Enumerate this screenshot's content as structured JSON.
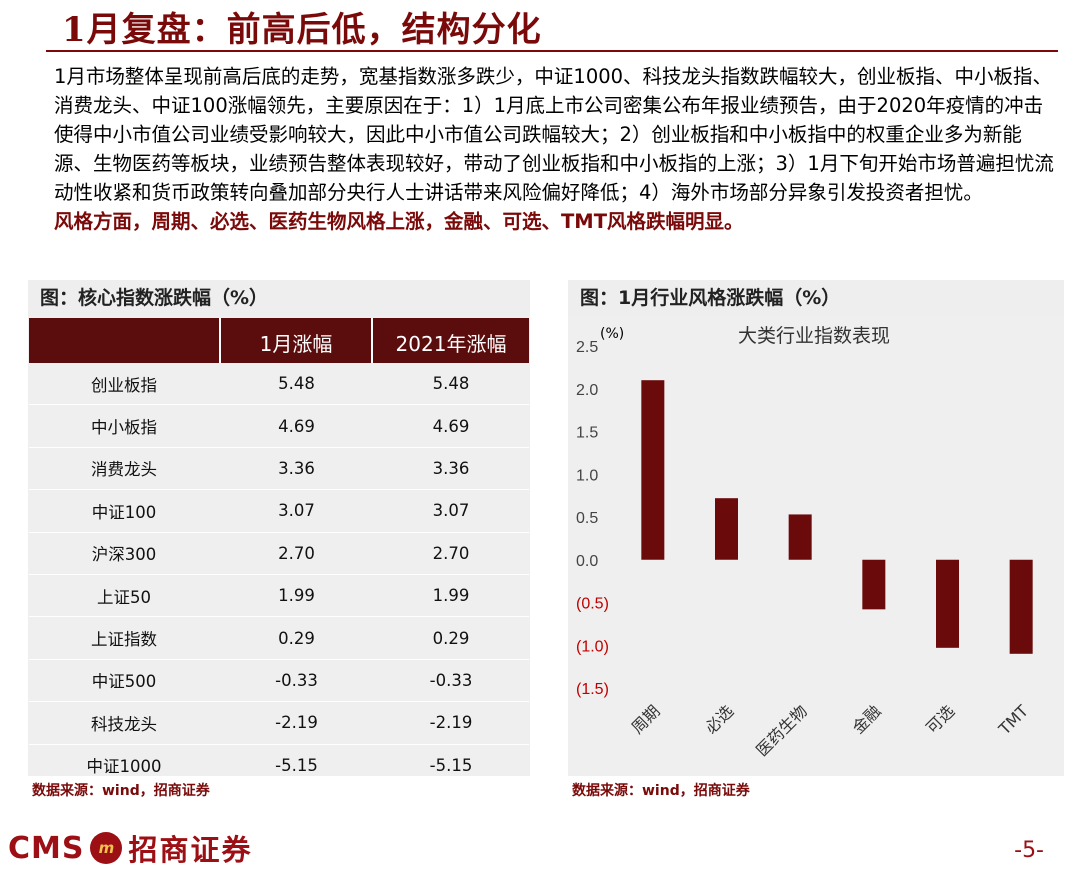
{
  "header": {
    "title": "1月复盘：前高后低，结构分化"
  },
  "summary": {
    "paragraph": "1月市场整体呈现前高后底的走势，宽基指数涨多跌少，中证1000、科技龙头指数跌幅较大，创业板指、中小板指、消费龙头、中证100涨幅领先，主要原因在于：1）1月底上市公司密集公布年报业绩预告，由于2020年疫情的冲击使得中小市值公司业绩受影响较大，因此中小市值公司跌幅较大；2）创业板指和中小板指中的权重企业多为新能源、生物医药等板块，业绩预告整体表现较好，带动了创业板指和中小板指的上涨；3）1月下旬开始市场普遍担忧流动性收紧和货币政策转向叠加部分央行人士讲话带来风险偏好降低；4）海外市场部分异象引发投资者担忧。",
    "highlight": "风格方面，周期、必选、医药生物风格上涨，金融、可选、TMT风格跌幅明显。"
  },
  "left_panel": {
    "title": "图：核心指数涨跌幅（%）",
    "headers": [
      "",
      "1月涨幅",
      "2021年涨幅"
    ],
    "rows": [
      {
        "name": "创业板指",
        "jan": "5.48",
        "ytd": "5.48"
      },
      {
        "name": "中小板指",
        "jan": "4.69",
        "ytd": "4.69"
      },
      {
        "name": "消费龙头",
        "jan": "3.36",
        "ytd": "3.36"
      },
      {
        "name": "中证100",
        "jan": "3.07",
        "ytd": "3.07"
      },
      {
        "name": "沪深300",
        "jan": "2.70",
        "ytd": "2.70"
      },
      {
        "name": "上证50",
        "jan": "1.99",
        "ytd": "1.99"
      },
      {
        "name": "上证指数",
        "jan": "0.29",
        "ytd": "0.29"
      },
      {
        "name": "中证500",
        "jan": "-0.33",
        "ytd": "-0.33"
      },
      {
        "name": "科技龙头",
        "jan": "-2.19",
        "ytd": "-2.19"
      },
      {
        "name": "中证1000",
        "jan": "-5.15",
        "ytd": "-5.15"
      }
    ],
    "source": "数据来源：wind，招商证券"
  },
  "right_panel": {
    "title": "图：1月行业风格涨跌幅（%）",
    "source": "数据来源：wind，招商证券"
  },
  "chart_data": {
    "type": "bar",
    "title": "大类行业指数表现",
    "ylabel": "(%)",
    "categories": [
      "周期",
      "必选",
      "医药生物",
      "金融",
      "可选",
      "TMT"
    ],
    "values": [
      2.1,
      0.72,
      0.53,
      -0.58,
      -1.03,
      -1.1
    ],
    "ylim": [
      -1.5,
      2.5
    ],
    "yticks": [
      "2.5",
      "2.0",
      "1.5",
      "1.0",
      "0.5",
      "0.0",
      "(0.5)",
      "(1.0)",
      "(1.5)"
    ],
    "ytick_values": [
      2.5,
      2.0,
      1.5,
      1.0,
      0.5,
      0.0,
      -0.5,
      -1.0,
      -1.5
    ],
    "bar_color": "#6b0a0a",
    "negative_tick_color": "#c00000",
    "grid": false,
    "legend": "none"
  },
  "footer": {
    "brand_en": "CMS",
    "brand_cn": "招商证券",
    "page": "-5-"
  }
}
